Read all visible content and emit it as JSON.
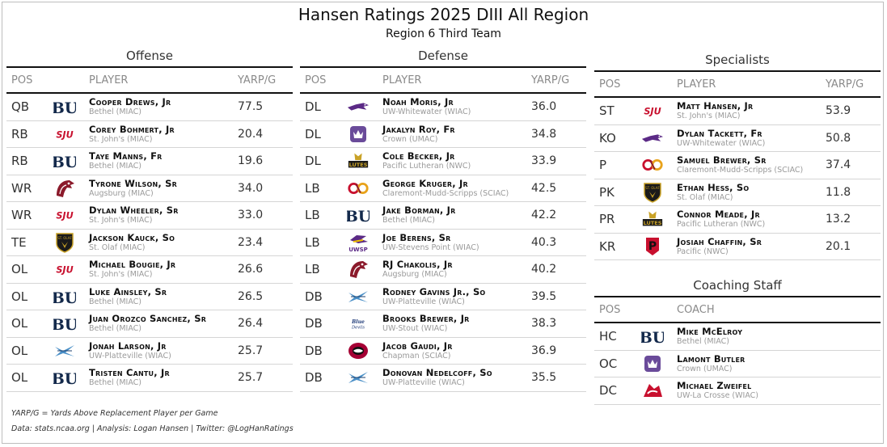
{
  "title": "Hansen Ratings 2025 DIII All Region",
  "subtitle": "Region 6 Third Team",
  "columns": {
    "pos": "POS",
    "player": "PLAYER",
    "coach": "COACH",
    "value": "YARP/G"
  },
  "offense": {
    "title": "Offense",
    "rows": [
      {
        "pos": "QB",
        "name": "Cooper Drews, Jr",
        "team": "Bethel (MIAC)",
        "value": "77.5",
        "logo": "bethel-logo"
      },
      {
        "pos": "RB",
        "name": "Corey Bohmert, Jr",
        "team": "St. John's (MIAC)",
        "value": "20.4",
        "logo": "sju-logo"
      },
      {
        "pos": "RB",
        "name": "Taye Manns, Fr",
        "team": "Bethel (MIAC)",
        "value": "19.6",
        "logo": "bethel-logo"
      },
      {
        "pos": "WR",
        "name": "Tyrone Wilson, Sr",
        "team": "Augsburg (MIAC)",
        "value": "34.0",
        "logo": "augsburg-logo"
      },
      {
        "pos": "WR",
        "name": "Dylan Wheeler, Sr",
        "team": "St. John's (MIAC)",
        "value": "33.0",
        "logo": "sju-logo"
      },
      {
        "pos": "TE",
        "name": "Jackson Kauck, So",
        "team": "St. Olaf (MIAC)",
        "value": "23.4",
        "logo": "stolaf-logo"
      },
      {
        "pos": "OL",
        "name": "Michael Bougie, Jr",
        "team": "St. John's (MIAC)",
        "value": "26.6",
        "logo": "sju-logo"
      },
      {
        "pos": "OL",
        "name": "Luke Ainsley, Sr",
        "team": "Bethel (MIAC)",
        "value": "26.5",
        "logo": "bethel-logo"
      },
      {
        "pos": "OL",
        "name": "Juan Orozco Sanchez, Sr",
        "team": "Bethel (MIAC)",
        "value": "26.4",
        "logo": "bethel-logo"
      },
      {
        "pos": "OL",
        "name": "Jonah Larson, Jr",
        "team": "UW-Platteville (WIAC)",
        "value": "25.7",
        "logo": "platteville-logo"
      },
      {
        "pos": "OL",
        "name": "Tristen Cantu, Jr",
        "team": "Bethel (MIAC)",
        "value": "25.7",
        "logo": "bethel-logo"
      }
    ]
  },
  "defense": {
    "title": "Defense",
    "rows": [
      {
        "pos": "DL",
        "name": "Noah Moris, Jr",
        "team": "UW-Whitewater (WIAC)",
        "value": "36.0",
        "logo": "whitewater-logo"
      },
      {
        "pos": "DL",
        "name": "Jakalyn Roy, Fr",
        "team": "Crown (UMAC)",
        "value": "34.8",
        "logo": "crown-logo"
      },
      {
        "pos": "DL",
        "name": "Cole Becker, Jr",
        "team": "Pacific Lutheran (NWC)",
        "value": "33.9",
        "logo": "plu-logo"
      },
      {
        "pos": "LB",
        "name": "George Kruger, Jr",
        "team": "Claremont-Mudd-Scripps (SCIAC)",
        "value": "42.5",
        "logo": "cms-logo"
      },
      {
        "pos": "LB",
        "name": "Jake Borman, Jr",
        "team": "Bethel (MIAC)",
        "value": "42.2",
        "logo": "bethel-logo"
      },
      {
        "pos": "LB",
        "name": "Joe Berens, Sr",
        "team": "UW-Stevens Point (WIAC)",
        "value": "40.3",
        "logo": "uwsp-logo"
      },
      {
        "pos": "LB",
        "name": "RJ Chakolis, Jr",
        "team": "Augsburg (MIAC)",
        "value": "40.2",
        "logo": "augsburg-logo"
      },
      {
        "pos": "DB",
        "name": "Rodney Gavins Jr., So",
        "team": "UW-Platteville (WIAC)",
        "value": "39.5",
        "logo": "platteville-logo"
      },
      {
        "pos": "DB",
        "name": "Brooks Brewer, Jr",
        "team": "UW-Stout (WIAC)",
        "value": "38.3",
        "logo": "stout-logo"
      },
      {
        "pos": "DB",
        "name": "Jacob Gaudi, Jr",
        "team": "Chapman (SCIAC)",
        "value": "36.9",
        "logo": "chapman-logo"
      },
      {
        "pos": "DB",
        "name": "Donovan Nedelcoff, So",
        "team": "UW-Platteville (WIAC)",
        "value": "35.5",
        "logo": "platteville-logo"
      }
    ]
  },
  "specialists": {
    "title": "Specialists",
    "rows": [
      {
        "pos": "ST",
        "name": "Matt Hansen, Jr",
        "team": "St. John's (MIAC)",
        "value": "53.9",
        "logo": "sju-logo"
      },
      {
        "pos": "KO",
        "name": "Dylan Tackett, Fr",
        "team": "UW-Whitewater (WIAC)",
        "value": "50.8",
        "logo": "whitewater-logo"
      },
      {
        "pos": "P",
        "name": "Samuel Brewer, Sr",
        "team": "Claremont-Mudd-Scripps (SCIAC)",
        "value": "37.4",
        "logo": "cms-logo"
      },
      {
        "pos": "PK",
        "name": "Ethan Hess, So",
        "team": "St. Olaf (MIAC)",
        "value": "11.8",
        "logo": "stolaf-logo"
      },
      {
        "pos": "PR",
        "name": "Connor Meade, Jr",
        "team": "Pacific Lutheran (NWC)",
        "value": "13.2",
        "logo": "plu-logo"
      },
      {
        "pos": "KR",
        "name": "Josiah Chaffin, Sr",
        "team": "Pacific (NWC)",
        "value": "20.1",
        "logo": "pacific-logo"
      }
    ]
  },
  "coaching": {
    "title": "Coaching Staff",
    "rows": [
      {
        "pos": "HC",
        "name": "Mike McElroy",
        "team": "Bethel (MIAC)",
        "logo": "bethel-logo"
      },
      {
        "pos": "OC",
        "name": "Lamont Butler",
        "team": "Crown (UMAC)",
        "logo": "crown-logo"
      },
      {
        "pos": "DC",
        "name": "Michael Zweifel",
        "team": "UW-La Crosse (WIAC)",
        "logo": "lacrosse-logo"
      }
    ]
  },
  "logo_text": {
    "bethel": "BU",
    "sju": "SJU",
    "stolaf": "ST. OLAF",
    "plu": "LUTES",
    "uwsp": "UWSP",
    "stout": "Blue Devils",
    "pacific": "P"
  },
  "footnote": "YARP/G = Yards Above Replacement Player per Game",
  "credits": "Data: stats.ncaa.org | Analysis: Logan Hansen | Twitter: @LogHanRatings",
  "colors": {
    "rule": "#111111",
    "divider": "#d5d5d5",
    "muted": "#9a9a9a",
    "bethel_navy": "#13294b",
    "sju_red": "#c8102e"
  }
}
